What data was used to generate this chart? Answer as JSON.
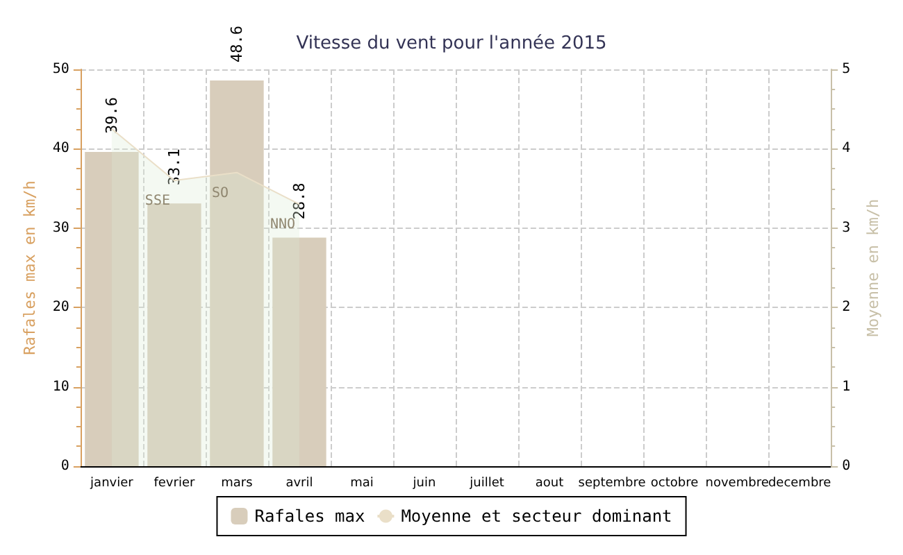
{
  "chart_data": {
    "type": "bar",
    "title": "Vitesse du vent pour l'année 2015",
    "categories": [
      "janvier",
      "fevrier",
      "mars",
      "avril",
      "mai",
      "juin",
      "juillet",
      "aout",
      "septembre",
      "octobre",
      "novembre",
      "decembre"
    ],
    "series": [
      {
        "name": "Rafales max",
        "type": "bar",
        "color": "#d8cdbb",
        "values": [
          39.6,
          33.1,
          48.6,
          28.8,
          null,
          null,
          null,
          null,
          null,
          null,
          null,
          null
        ],
        "data_labels": true
      },
      {
        "name": "Moyenne et secteur dominant",
        "type": "area",
        "axis": "y2",
        "color": "#eadfc8",
        "values": [
          4.25,
          3.6,
          3.7,
          3.3,
          null,
          null,
          null,
          null,
          null,
          null,
          null,
          null
        ],
        "value_labels": [
          null,
          "SSE",
          "SO",
          "NNO",
          null,
          null,
          null,
          null,
          null,
          null,
          null,
          null
        ]
      }
    ],
    "ylabel": "Rafales max en km/h",
    "y2label": "Moyenne en km/h",
    "ylim": [
      0,
      50
    ],
    "yticks": [
      0,
      10,
      20,
      30,
      40,
      50
    ],
    "y2lim": [
      0,
      5
    ],
    "y2ticks": [
      0,
      1,
      2,
      3,
      4,
      5
    ],
    "grid": true,
    "legend": "bottom"
  }
}
